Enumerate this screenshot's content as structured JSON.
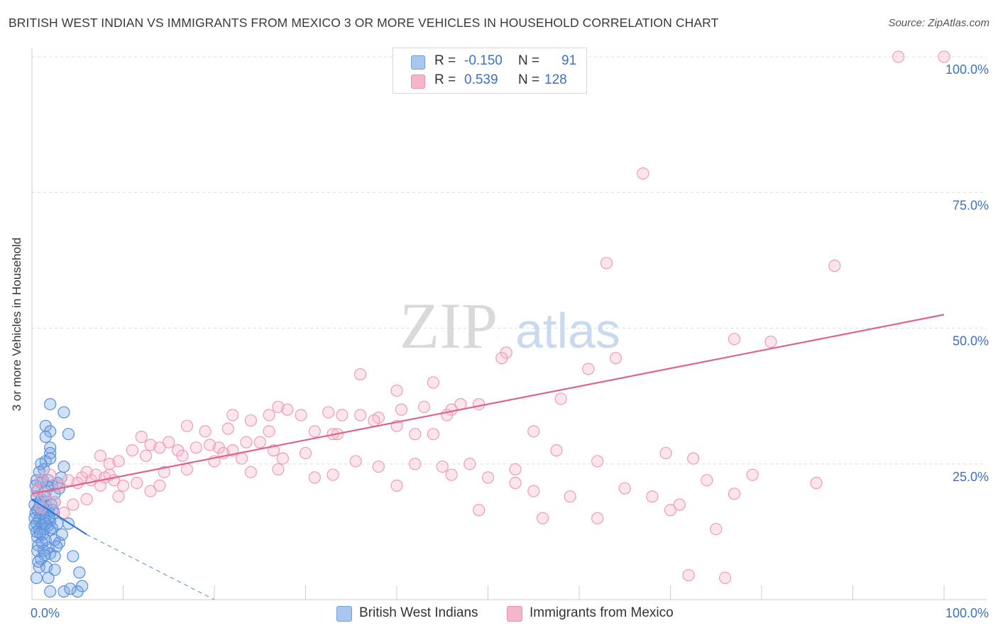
{
  "title": "BRITISH WEST INDIAN VS IMMIGRANTS FROM MEXICO 3 OR MORE VEHICLES IN HOUSEHOLD CORRELATION CHART",
  "source": "Source: ZipAtlas.com",
  "watermark": {
    "zip": "ZIP",
    "atlas": "atlas"
  },
  "legend_top": {
    "rows": [
      {
        "r_label": "R =",
        "r_value": "-0.150",
        "n_label": "N =",
        "n_value": "91",
        "color": "#a9c6ef"
      },
      {
        "r_label": "R =",
        "r_value": "0.539",
        "n_label": "N =",
        "n_value": "128",
        "color": "#f6b6c9"
      }
    ]
  },
  "legend_bottom": [
    {
      "label": "British West Indians",
      "color": "#a9c6ef"
    },
    {
      "label": "Immigrants from Mexico",
      "color": "#f6b6c9"
    }
  ],
  "chart_data": {
    "type": "scatter",
    "title": "BRITISH WEST INDIAN VS IMMIGRANTS FROM MEXICO 3 OR MORE VEHICLES IN HOUSEHOLD CORRELATION CHART",
    "xlabel": "",
    "ylabel": "3 or more Vehicles in Household",
    "xlim": [
      0,
      100
    ],
    "ylim": [
      0,
      100
    ],
    "x_tick_labels": [
      "0.0%",
      "100.0%"
    ],
    "y_tick_labels": [
      "25.0%",
      "50.0%",
      "75.0%",
      "100.0%"
    ],
    "y_ticks": [
      25,
      50,
      75,
      100
    ],
    "grid": true,
    "legend_placement": "top-center",
    "series": [
      {
        "name": "British West Indians",
        "color": "#6d9fe0",
        "points": [
          [
            2,
            36
          ],
          [
            3.5,
            34.5
          ],
          [
            1.5,
            32
          ],
          [
            2,
            31
          ],
          [
            4,
            30.5
          ],
          [
            1.5,
            30
          ],
          [
            2,
            28
          ],
          [
            2,
            27
          ],
          [
            1.5,
            25.5
          ],
          [
            2,
            26
          ],
          [
            1,
            25
          ],
          [
            1.3,
            24
          ],
          [
            3.5,
            24.5
          ],
          [
            0.5,
            22
          ],
          [
            1,
            21.5
          ],
          [
            1.8,
            22
          ],
          [
            2.2,
            21
          ],
          [
            3,
            20.5
          ],
          [
            0.6,
            20
          ],
          [
            1.5,
            20
          ],
          [
            2.5,
            19.5
          ],
          [
            0.5,
            19
          ],
          [
            1,
            18.5
          ],
          [
            1.5,
            18
          ],
          [
            2.5,
            18
          ],
          [
            0.3,
            17.5
          ],
          [
            0.8,
            17
          ],
          [
            1.2,
            17
          ],
          [
            1.8,
            16.5
          ],
          [
            2.3,
            16.5
          ],
          [
            0.4,
            16
          ],
          [
            1,
            15.8
          ],
          [
            1.6,
            15.5
          ],
          [
            0.3,
            15
          ],
          [
            0.8,
            14.8
          ],
          [
            1.4,
            14.5
          ],
          [
            2,
            14.5
          ],
          [
            2.8,
            14
          ],
          [
            0.5,
            14
          ],
          [
            1.1,
            13.8
          ],
          [
            1.7,
            13.5
          ],
          [
            0.3,
            13.5
          ],
          [
            0.8,
            13
          ],
          [
            1.3,
            13
          ],
          [
            2,
            12.8
          ],
          [
            0.5,
            12.5
          ],
          [
            1.2,
            12
          ],
          [
            4,
            14
          ],
          [
            0.6,
            11.5
          ],
          [
            1.5,
            11
          ],
          [
            2.5,
            11
          ],
          [
            3,
            10.5
          ],
          [
            0.7,
            10
          ],
          [
            1.8,
            9.5
          ],
          [
            0.6,
            9
          ],
          [
            1.3,
            9
          ],
          [
            2,
            8.5
          ],
          [
            2.5,
            8
          ],
          [
            4.5,
            8
          ],
          [
            1,
            7.5
          ],
          [
            0.8,
            6
          ],
          [
            1.6,
            6
          ],
          [
            2.5,
            5.5
          ],
          [
            5.2,
            5
          ],
          [
            0.5,
            4
          ],
          [
            1.8,
            4
          ],
          [
            5.5,
            2.5
          ],
          [
            2,
            1.5
          ],
          [
            3.5,
            1.5
          ],
          [
            5,
            1.5
          ],
          [
            4.2,
            2
          ],
          [
            1.2,
            22
          ],
          [
            0.8,
            23.5
          ],
          [
            2.8,
            21.5
          ],
          [
            3.2,
            22.5
          ],
          [
            1.4,
            19
          ],
          [
            0.9,
            18
          ],
          [
            2.1,
            17.5
          ],
          [
            0.6,
            16.5
          ],
          [
            1.9,
            15
          ],
          [
            1.5,
            14
          ],
          [
            0.9,
            12.2
          ],
          [
            2.2,
            13.2
          ],
          [
            1.1,
            10.5
          ],
          [
            2.7,
            9.8
          ],
          [
            1.4,
            8.2
          ],
          [
            0.7,
            7
          ],
          [
            3.3,
            12
          ],
          [
            2.4,
            16
          ],
          [
            1.7,
            20.8
          ],
          [
            0.4,
            21
          ]
        ]
      },
      {
        "name": "Immigrants from Mexico",
        "color": "#f3a1ba",
        "points": [
          [
            95,
            100
          ],
          [
            100,
            100
          ],
          [
            67,
            78.5
          ],
          [
            63,
            62
          ],
          [
            88,
            61.5
          ],
          [
            77,
            48
          ],
          [
            81,
            47.5
          ],
          [
            52,
            45.5
          ],
          [
            51.5,
            44.5
          ],
          [
            64,
            44.5
          ],
          [
            61,
            42.5
          ],
          [
            36,
            41.5
          ],
          [
            44,
            40
          ],
          [
            40,
            38.5
          ],
          [
            58,
            37
          ],
          [
            47,
            36
          ],
          [
            49,
            36
          ],
          [
            46,
            35
          ],
          [
            32.5,
            34.5
          ],
          [
            40.5,
            35
          ],
          [
            43,
            35.5
          ],
          [
            27,
            35.5
          ],
          [
            28,
            35
          ],
          [
            34,
            34
          ],
          [
            26,
            34
          ],
          [
            36,
            34
          ],
          [
            45.5,
            34
          ],
          [
            38,
            33.5
          ],
          [
            22,
            34
          ],
          [
            29.5,
            34
          ],
          [
            37.5,
            33
          ],
          [
            40,
            32
          ],
          [
            24,
            33
          ],
          [
            17,
            32
          ],
          [
            19,
            31
          ],
          [
            42,
            30.5
          ],
          [
            26,
            31
          ],
          [
            31,
            31
          ],
          [
            33,
            30.5
          ],
          [
            55,
            31
          ],
          [
            33.5,
            30.5
          ],
          [
            21.5,
            31.5
          ],
          [
            44,
            30.5
          ],
          [
            12,
            30
          ],
          [
            15,
            29
          ],
          [
            13,
            28.5
          ],
          [
            18,
            28
          ],
          [
            14,
            28
          ],
          [
            25,
            29
          ],
          [
            23.5,
            29
          ],
          [
            19.5,
            28.5
          ],
          [
            20.5,
            28
          ],
          [
            22,
            27.5
          ],
          [
            26.5,
            27.5
          ],
          [
            30,
            27
          ],
          [
            16,
            27.5
          ],
          [
            11,
            27.5
          ],
          [
            7.5,
            26.5
          ],
          [
            8.5,
            25
          ],
          [
            12.5,
            26.5
          ],
          [
            9.5,
            25.5
          ],
          [
            16.5,
            26.5
          ],
          [
            21,
            27
          ],
          [
            23,
            26
          ],
          [
            27.5,
            26
          ],
          [
            35.5,
            25.5
          ],
          [
            42,
            25
          ],
          [
            45,
            24.5
          ],
          [
            48,
            25
          ],
          [
            53,
            24
          ],
          [
            57.5,
            27.5
          ],
          [
            62,
            25.5
          ],
          [
            69.5,
            27
          ],
          [
            72.5,
            26
          ],
          [
            79,
            23
          ],
          [
            86,
            21.5
          ],
          [
            77,
            19.5
          ],
          [
            49,
            16.5
          ],
          [
            56,
            15
          ],
          [
            62,
            15
          ],
          [
            70,
            16.5
          ],
          [
            75,
            13
          ],
          [
            76,
            4
          ],
          [
            72,
            4.5
          ],
          [
            0.5,
            20
          ],
          [
            1.5,
            19.5
          ],
          [
            3,
            21
          ],
          [
            4,
            22
          ],
          [
            5.5,
            22.5
          ],
          [
            6.5,
            22
          ],
          [
            7,
            23
          ],
          [
            8,
            22.5
          ],
          [
            9,
            22
          ],
          [
            10,
            21
          ],
          [
            11.5,
            21.5
          ],
          [
            13,
            20
          ],
          [
            14,
            21
          ],
          [
            6,
            18.5
          ],
          [
            9.5,
            19
          ],
          [
            2.5,
            18
          ],
          [
            1,
            17
          ],
          [
            3.5,
            16
          ],
          [
            4.5,
            17.5
          ],
          [
            5,
            21.5
          ],
          [
            7.5,
            21
          ],
          [
            2,
            23
          ],
          [
            1,
            22
          ],
          [
            6,
            23.5
          ],
          [
            8.5,
            23
          ],
          [
            14.5,
            23.5
          ],
          [
            17,
            24
          ],
          [
            20,
            25.5
          ],
          [
            24,
            23.5
          ],
          [
            27,
            24
          ],
          [
            31,
            22.5
          ],
          [
            33,
            23
          ],
          [
            38,
            24.5
          ],
          [
            40,
            21
          ],
          [
            46,
            23
          ],
          [
            50,
            22.5
          ],
          [
            53,
            21.5
          ],
          [
            55,
            20
          ],
          [
            59,
            19
          ],
          [
            65,
            20.5
          ],
          [
            68,
            19
          ],
          [
            71,
            17.5
          ],
          [
            74,
            22
          ]
        ]
      }
    ],
    "trend_lines": [
      {
        "series": "British West Indians",
        "from": [
          0,
          18.5
        ],
        "to": [
          6,
          12
        ],
        "dashed_to": [
          20,
          0
        ]
      },
      {
        "series": "Immigrants from Mexico",
        "from": [
          0,
          19.5
        ],
        "to": [
          100,
          52.5
        ]
      }
    ]
  }
}
